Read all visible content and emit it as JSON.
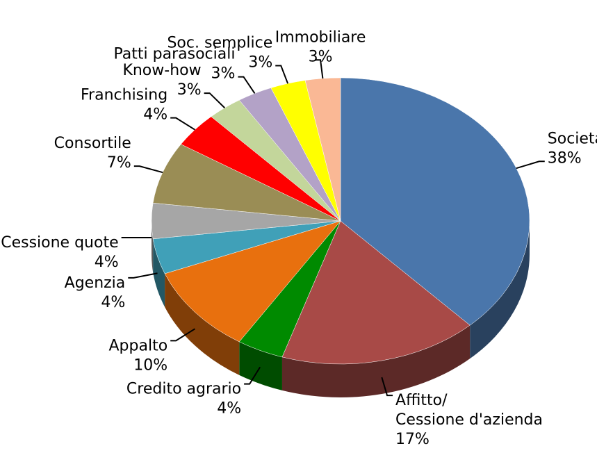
{
  "chart_data": {
    "type": "pie",
    "categories": [
      "Societario",
      "Affitto/Cessione d'azienda",
      "Credito agrario",
      "Appalto",
      "Agenzia",
      "Cessione quote",
      "Consortile",
      "Franchising",
      "Know-how",
      "Patti parasociali",
      "Soc. semplice",
      "Immobiliare"
    ],
    "values": [
      38,
      17,
      4,
      10,
      4,
      4,
      7,
      4,
      3,
      3,
      3,
      3
    ],
    "value_labels": [
      "38%",
      "17%",
      "4%",
      "10%",
      "4%",
      "4%",
      "7%",
      "4%",
      "3%",
      "3%",
      "3%",
      "3%"
    ],
    "colors": [
      "#4a76ab",
      "#a84a47",
      "#008a00",
      "#e8700e",
      "#40a0b8",
      "#a6a6a6",
      "#9a8d55",
      "#ff0000",
      "#c3d69b",
      "#b3a2c7",
      "#ffff00",
      "#fab895"
    ]
  }
}
